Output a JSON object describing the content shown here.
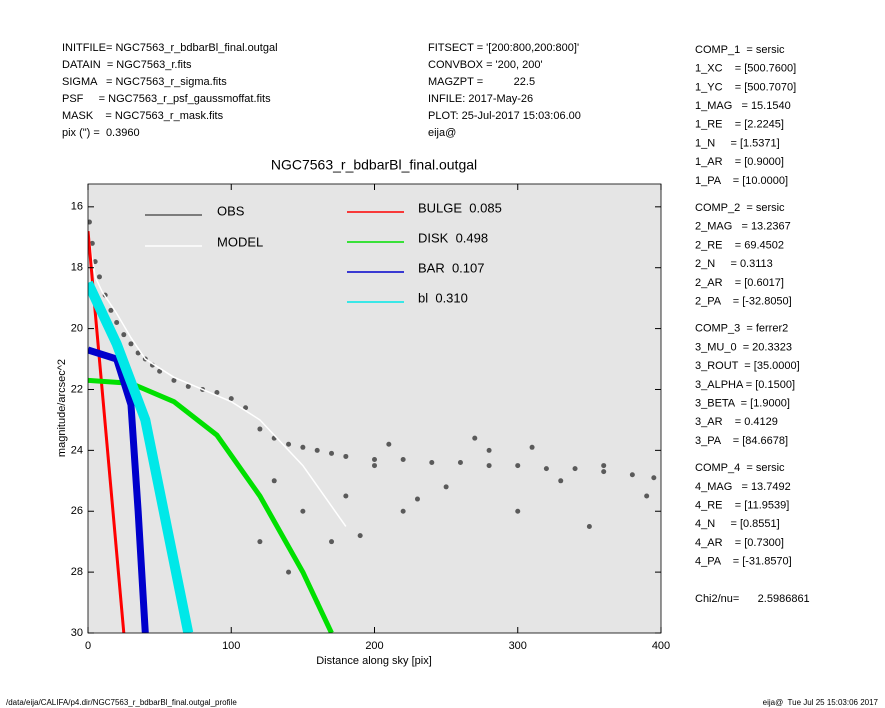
{
  "header": {
    "left": [
      "INITFILE= NGC7563_r_bdbarBl_final.outgal",
      "DATAIN  = NGC7563_r.fits",
      "SIGMA   = NGC7563_r_sigma.fits",
      "PSF     = NGC7563_r_psf_gaussmoffat.fits",
      "MASK    = NGC7563_r_mask.fits",
      "pix (\") =  0.3960"
    ],
    "middle": [
      "FITSECT = '[200:800,200:800]'",
      "CONVBOX = '200, 200'",
      "MAGZPT =          22.5",
      "INFILE: 2017-May-26",
      "PLOT: 25-Jul-2017 15:03:06.00",
      "eija@"
    ]
  },
  "params": [
    [
      "COMP_1  = sersic",
      "1_XC    = [500.7600]",
      "1_YC    = [500.7070]",
      "1_MAG   = 15.1540",
      "1_RE    = [2.2245]",
      "1_N     = [1.5371]",
      "1_AR    = [0.9000]",
      "1_PA    = [10.0000]"
    ],
    [
      "COMP_2  = sersic",
      "2_MAG   = 13.2367",
      "2_RE    = 69.4502",
      "2_N     = 0.3113",
      "2_AR    = [0.6017]",
      "2_PA    = [-32.8050]"
    ],
    [
      "COMP_3  = ferrer2",
      "3_MU_0  = 20.3323",
      "3_ROUT  = [35.0000]",
      "3_ALPHA = [0.1500]",
      "3_BETA  = [1.9000]",
      "3_AR    = 0.4129",
      "3_PA    = [84.6678]"
    ],
    [
      "COMP_4  = sersic",
      "4_MAG   = 13.7492",
      "4_RE    = [11.9539]",
      "4_N     = [0.8551]",
      "4_AR    = [0.7300]",
      "4_PA    = [-31.8570]"
    ],
    [
      "Chi2/nu=      2.5986861"
    ]
  ],
  "footer": {
    "left": "/data/eija/CALIFA/p4.dir/NGC7563_r_bdbarBl_final.outgal_profile",
    "right": "eija@  Tue Jul 25 15:03:06 2017"
  },
  "chart_data": {
    "type": "line",
    "title": "NGC7563_r_bdbarBl_final.outgal",
    "xlabel": "Distance along sky [pix]",
    "ylabel": "magnitude/arcsec^2",
    "xlim": [
      0,
      400
    ],
    "xticks": [
      0,
      100,
      200,
      300,
      400
    ],
    "ylim": [
      30,
      15.25
    ],
    "yticks": [
      16,
      18,
      20,
      22,
      24,
      26,
      28,
      30
    ],
    "background": "#e5e5e5",
    "series": [
      {
        "name": "OBS",
        "color": "#5a5a5a",
        "marker": "points",
        "x": [
          1,
          3,
          5,
          8,
          12,
          16,
          20,
          25,
          30,
          35,
          40,
          45,
          50,
          60,
          70,
          80,
          90,
          100,
          110,
          120,
          130,
          140,
          150,
          160,
          170,
          180,
          200,
          220,
          240,
          260,
          280,
          300,
          320,
          340,
          360,
          380,
          395,
          130,
          150,
          170,
          180,
          200,
          220,
          250,
          280,
          300,
          330,
          360,
          390,
          140,
          160,
          120,
          210,
          270,
          310,
          350,
          230,
          190
        ],
        "values": [
          16.5,
          17.2,
          17.8,
          18.3,
          18.9,
          19.4,
          19.8,
          20.2,
          20.5,
          20.8,
          21.0,
          21.2,
          21.4,
          21.7,
          21.9,
          22.0,
          22.1,
          22.3,
          22.6,
          23.3,
          23.6,
          23.8,
          23.9,
          24.0,
          24.1,
          24.2,
          24.3,
          24.3,
          24.4,
          24.4,
          24.5,
          24.5,
          24.6,
          24.6,
          24.7,
          24.8,
          24.9,
          25.0,
          26.0,
          27.0,
          25.5,
          24.5,
          26.0,
          25.2,
          24.0,
          26.0,
          25.0,
          24.5,
          25.5,
          28.0,
          29.0,
          27.0,
          23.8,
          23.6,
          23.9,
          26.5,
          25.6,
          26.8
        ]
      },
      {
        "name": "MODEL",
        "color": "#ffffff",
        "marker": "line",
        "x": [
          0,
          5,
          10,
          20,
          30,
          40,
          60,
          80,
          100,
          120,
          150,
          180
        ],
        "values": [
          16.8,
          18.3,
          18.8,
          19.5,
          20.3,
          21.0,
          21.6,
          22.0,
          22.4,
          23.0,
          24.5,
          26.5
        ]
      },
      {
        "name": "BULGE  0.085",
        "color": "#ff0000",
        "marker": "line",
        "x": [
          0,
          25
        ],
        "values": [
          16.8,
          30
        ]
      },
      {
        "name": "DISK  0.498",
        "color": "#00e000",
        "marker": "line",
        "x": [
          0,
          30,
          60,
          90,
          120,
          150,
          170
        ],
        "values": [
          21.7,
          21.8,
          22.4,
          23.5,
          25.5,
          28,
          30
        ]
      },
      {
        "name": "BAR  0.107",
        "color": "#0000cc",
        "marker": "line",
        "x": [
          0,
          20,
          30,
          35,
          40
        ],
        "values": [
          20.7,
          21.0,
          22.5,
          26,
          30
        ]
      },
      {
        "name": "bl  0.310",
        "color": "#00e8e8",
        "marker": "line",
        "x": [
          0,
          20,
          40,
          55,
          70
        ],
        "values": [
          18.5,
          20.5,
          23,
          26.5,
          30
        ]
      }
    ]
  }
}
